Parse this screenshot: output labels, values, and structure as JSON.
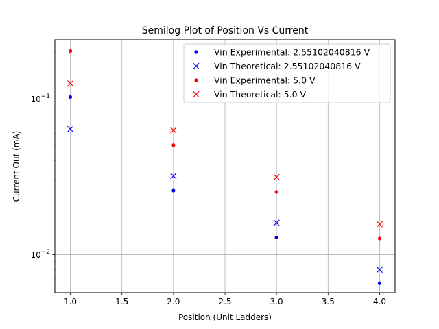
{
  "chart_data": {
    "type": "scatter",
    "title": "Semilog Plot of Position Vs Current",
    "xlabel": "Position (Unit Ladders)",
    "ylabel": "Current Out (mA)",
    "xlim": [
      0.85,
      4.15
    ],
    "ylim": [
      0.0057,
      0.24
    ],
    "yscale": "log",
    "grid": true,
    "legend_position": "top-right",
    "x_ticks": [
      {
        "value": 1.0,
        "label": "1.0"
      },
      {
        "value": 1.5,
        "label": "1.5"
      },
      {
        "value": 2.0,
        "label": "2.0"
      },
      {
        "value": 2.5,
        "label": "2.5"
      },
      {
        "value": 3.0,
        "label": "3.0"
      },
      {
        "value": 3.5,
        "label": "3.5"
      },
      {
        "value": 4.0,
        "label": "4.0"
      }
    ],
    "y_ticks": [
      {
        "value": 0.1,
        "base": "10",
        "exp": "−1"
      },
      {
        "value": 0.01,
        "base": "10",
        "exp": "−2"
      }
    ],
    "series": [
      {
        "name": "Vin Experimental: 2.55102040816 V",
        "color": "#0000ff",
        "marker": "dot",
        "x": [
          1,
          2,
          3,
          4
        ],
        "y": [
          0.103,
          0.0258,
          0.0129,
          0.00655
        ]
      },
      {
        "name": "Vin Theoretical: 2.55102040816 V",
        "color": "#0000ff",
        "marker": "x",
        "x": [
          1,
          2,
          3,
          4
        ],
        "y": [
          0.064,
          0.032,
          0.016,
          0.008
        ]
      },
      {
        "name": "Vin Experimental: 5.0 V",
        "color": "#ff0000",
        "marker": "dot",
        "x": [
          1,
          2,
          3,
          4
        ],
        "y": [
          0.203,
          0.0505,
          0.0253,
          0.0127
        ]
      },
      {
        "name": "Vin Theoretical: 5.0 V",
        "color": "#ff0000",
        "marker": "x",
        "x": [
          1,
          2,
          3,
          4
        ],
        "y": [
          0.126,
          0.063,
          0.0315,
          0.0157
        ]
      }
    ]
  }
}
